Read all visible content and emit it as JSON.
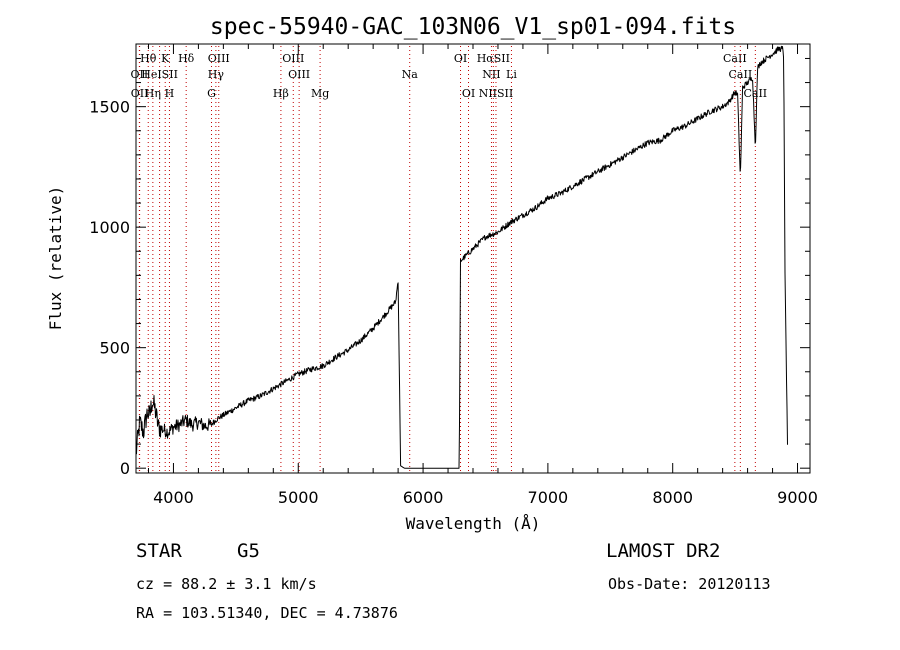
{
  "chart_data": {
    "type": "line",
    "title": "spec-55940-GAC_103N06_V1_sp01-094.fits",
    "xlabel": "Wavelength (Å)",
    "ylabel": "Flux (relative)",
    "xlim": [
      3700,
      9100
    ],
    "ylim": [
      -20,
      1760
    ],
    "x_ticks": [
      "4000",
      "5000",
      "6000",
      "7000",
      "8000",
      "9000"
    ],
    "y_ticks": [
      "0",
      "500",
      "1000",
      "1500"
    ],
    "grid": false,
    "series": [
      {
        "x": [
          3700,
          3730,
          3760,
          3790,
          3810,
          3830,
          3850,
          3880,
          3920,
          3960,
          4000,
          4050,
          4100,
          4150,
          4200,
          4250,
          4300,
          4350,
          4400,
          4500,
          4600,
          4700,
          4800,
          4900,
          5000,
          5100,
          5200,
          5300,
          5400,
          5500,
          5600,
          5700,
          5780,
          5800,
          5820,
          5850,
          6000,
          6200,
          6280,
          6290,
          6300,
          6400,
          6500,
          6600,
          6700,
          6800,
          6900,
          7000,
          7100,
          7200,
          7300,
          7400,
          7500,
          7600,
          7700,
          7800,
          7900,
          8000,
          8100,
          8200,
          8300,
          8400,
          8450,
          8500,
          8520,
          8542,
          8560,
          8600,
          8640,
          8662,
          8680,
          8700,
          8750,
          8800,
          8850,
          8880,
          8890,
          8900,
          8920
        ],
        "y": [
          60,
          190,
          150,
          230,
          220,
          280,
          250,
          170,
          160,
          150,
          170,
          180,
          200,
          180,
          190,
          175,
          180,
          205,
          220,
          250,
          280,
          300,
          330,
          360,
          390,
          410,
          425,
          460,
          490,
          530,
          580,
          640,
          690,
          780,
          10,
          0,
          0,
          0,
          0,
          0,
          860,
          910,
          960,
          980,
          1020,
          1050,
          1080,
          1120,
          1140,
          1170,
          1200,
          1230,
          1260,
          1290,
          1320,
          1350,
          1360,
          1400,
          1420,
          1450,
          1480,
          1500,
          1520,
          1560,
          1550,
          1200,
          1580,
          1600,
          1620,
          1330,
          1660,
          1680,
          1700,
          1720,
          1740,
          1740,
          1700,
          800,
          100
        ]
      }
    ],
    "lines": [
      {
        "label": "Hθ",
        "x": 3798,
        "row": 1
      },
      {
        "label": "K",
        "x": 3934,
        "row": 1
      },
      {
        "label": "Hδ",
        "x": 4102,
        "row": 1
      },
      {
        "label": "OIII",
        "x": 4363,
        "row": 1
      },
      {
        "label": "OIII",
        "x": 4960,
        "row": 1
      },
      {
        "label": "OI",
        "x": 6300,
        "row": 1
      },
      {
        "label": "HαSII",
        "x": 6563,
        "row": 1
      },
      {
        "label": "CaII",
        "x": 8498,
        "row": 1
      },
      {
        "label": "OII",
        "x": 3727,
        "row": 2
      },
      {
        "label": "HeISII",
        "x": 3889,
        "row": 2
      },
      {
        "label": "Hγ",
        "x": 4340,
        "row": 2
      },
      {
        "label": "OIII",
        "x": 5007,
        "row": 2
      },
      {
        "label": "Na",
        "x": 5893,
        "row": 2
      },
      {
        "label": "NII",
        "x": 6548,
        "row": 2
      },
      {
        "label": "Li",
        "x": 6708,
        "row": 2
      },
      {
        "label": "CaII",
        "x": 8542,
        "row": 2
      },
      {
        "label": "OII",
        "x": 3729,
        "row": 3
      },
      {
        "label": "Hη",
        "x": 3835,
        "row": 3
      },
      {
        "label": "H",
        "x": 3968,
        "row": 3
      },
      {
        "label": "G",
        "x": 4305,
        "row": 3
      },
      {
        "label": "Hβ",
        "x": 4861,
        "row": 3
      },
      {
        "label": "Mg",
        "x": 5175,
        "row": 3
      },
      {
        "label": "OI",
        "x": 6364,
        "row": 3
      },
      {
        "label": "NIISII",
        "x": 6584,
        "row": 3
      },
      {
        "label": "CaII",
        "x": 8662,
        "row": 3
      }
    ]
  },
  "info": {
    "class": "STAR",
    "subclass": "G5",
    "survey": "LAMOST DR2",
    "cz": "cz = 88.2 ± 3.1 km/s",
    "obs_date": "Obs-Date: 20120113",
    "coords": "RA = 103.51340, DEC =   4.73876"
  }
}
